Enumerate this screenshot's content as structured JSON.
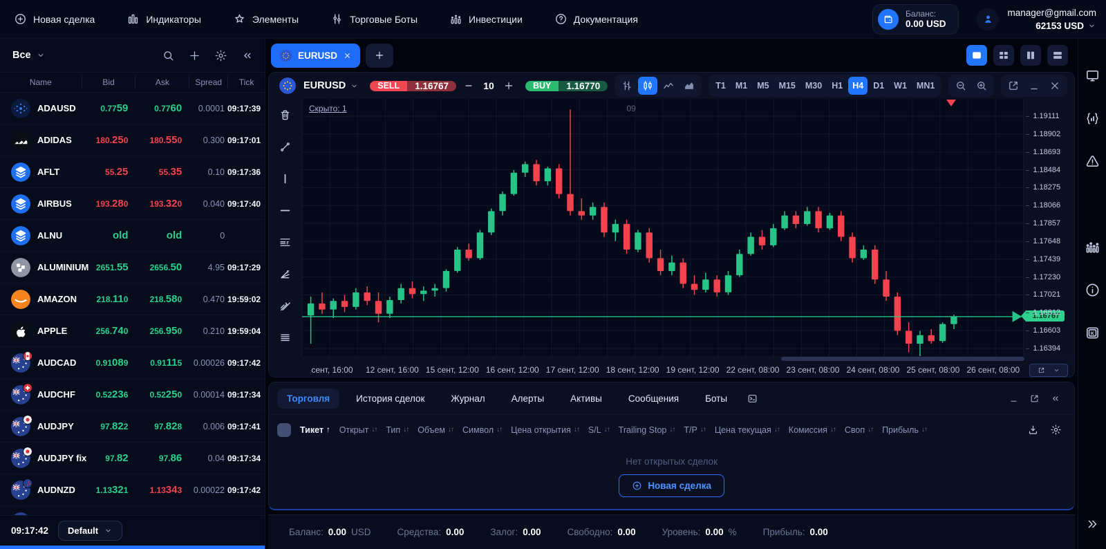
{
  "topnav": {
    "items": [
      {
        "label": "Новая сделка",
        "icon": "plus-circle-icon",
        "slug": "new-deal"
      },
      {
        "label": "Индикаторы",
        "icon": "indicators-icon",
        "slug": "indicators"
      },
      {
        "label": "Элементы",
        "icon": "star-icon",
        "slug": "elements"
      },
      {
        "label": "Торговые Боты",
        "icon": "sliders-icon",
        "slug": "trading-bots"
      },
      {
        "label": "Инвестиции",
        "icon": "investments-icon",
        "slug": "investments"
      },
      {
        "label": "Документация",
        "icon": "question-circle-icon",
        "slug": "documentation"
      }
    ],
    "balance_label": "Баланс:",
    "balance_value": "0.00 USD",
    "email": "manager@gmail.com",
    "account_value": "62153 USD"
  },
  "watchlist": {
    "filter_label": "Все",
    "columns": [
      "Name",
      "Bid",
      "Ask",
      "Spread",
      "Tick"
    ],
    "rows": [
      {
        "name": "ADAUSD",
        "icon": "cardano-icon",
        "bid": {
          "pre": "0.77",
          "big": "59",
          "post": "",
          "dir": "up"
        },
        "ask": {
          "pre": "0.77",
          "big": "60",
          "post": "",
          "dir": "up"
        },
        "spread": "0.0001",
        "tick": "09:17:39"
      },
      {
        "name": "ADIDAS",
        "icon": "adidas-icon",
        "bid": {
          "pre": "180.",
          "big": "25",
          "post": "0",
          "dir": "down"
        },
        "ask": {
          "pre": "180.",
          "big": "55",
          "post": "0",
          "dir": "down"
        },
        "spread": "0.300",
        "tick": "09:17:01"
      },
      {
        "name": "AFLT",
        "icon": "layers-icon",
        "bid": {
          "pre": "55.",
          "big": "25",
          "post": "",
          "dir": "down"
        },
        "ask": {
          "pre": "55.",
          "big": "35",
          "post": "",
          "dir": "down"
        },
        "spread": "0.10",
        "tick": "09:17:36"
      },
      {
        "name": "AIRBUS",
        "icon": "layers-icon",
        "bid": {
          "pre": "193.",
          "big": "28",
          "post": "0",
          "dir": "down"
        },
        "ask": {
          "pre": "193.",
          "big": "32",
          "post": "0",
          "dir": "down"
        },
        "spread": "0.040",
        "tick": "09:17:40"
      },
      {
        "name": "ALNU",
        "icon": "layers-icon",
        "bid": {
          "pre": "",
          "big": "old",
          "post": "",
          "dir": "up"
        },
        "ask": {
          "pre": "",
          "big": "old",
          "post": "",
          "dir": "up"
        },
        "spread": "0",
        "tick": ""
      },
      {
        "name": "ALUMINIUM",
        "icon": "aluminium-icon",
        "bid": {
          "pre": "2651.",
          "big": "55",
          "post": "",
          "dir": "up"
        },
        "ask": {
          "pre": "2656.",
          "big": "50",
          "post": "",
          "dir": "up"
        },
        "spread": "4.95",
        "tick": "09:17:29"
      },
      {
        "name": "AMAZON",
        "icon": "amazon-icon",
        "bid": {
          "pre": "218.",
          "big": "11",
          "post": "0",
          "dir": "up"
        },
        "ask": {
          "pre": "218.",
          "big": "58",
          "post": "0",
          "dir": "up"
        },
        "spread": "0.470",
        "tick": "19:59:02"
      },
      {
        "name": "APPLE",
        "icon": "apple-icon",
        "bid": {
          "pre": "256.",
          "big": "74",
          "post": "0",
          "dir": "up"
        },
        "ask": {
          "pre": "256.",
          "big": "95",
          "post": "0",
          "dir": "up"
        },
        "spread": "0.210",
        "tick": "19:59:04"
      },
      {
        "name": "AUDCAD",
        "icon": "aud-cad-icon",
        "bid": {
          "pre": "0.91",
          "big": "08",
          "post": "9",
          "dir": "up"
        },
        "ask": {
          "pre": "0.91",
          "big": "11",
          "post": "5",
          "dir": "up"
        },
        "spread": "0.00026",
        "tick": "09:17:42"
      },
      {
        "name": "AUDCHF",
        "icon": "aud-chf-icon",
        "bid": {
          "pre": "0.52",
          "big": "23",
          "post": "6",
          "dir": "up"
        },
        "ask": {
          "pre": "0.52",
          "big": "25",
          "post": "0",
          "dir": "up"
        },
        "spread": "0.00014",
        "tick": "09:17:34"
      },
      {
        "name": "AUDJPY",
        "icon": "aud-jpy-icon",
        "bid": {
          "pre": "97.",
          "big": "82",
          "post": "2",
          "dir": "up"
        },
        "ask": {
          "pre": "97.",
          "big": "82",
          "post": "8",
          "dir": "up"
        },
        "spread": "0.006",
        "tick": "09:17:41"
      },
      {
        "name": "AUDJPY fix",
        "icon": "aud-jpy-icon",
        "bid": {
          "pre": "97.",
          "big": "82",
          "post": "",
          "dir": "up"
        },
        "ask": {
          "pre": "97.",
          "big": "86",
          "post": "",
          "dir": "up"
        },
        "spread": "0.04",
        "tick": "09:17:34"
      },
      {
        "name": "AUDNZD",
        "icon": "aud-nzd-icon",
        "bid": {
          "pre": "1.13",
          "big": "32",
          "post": "1",
          "dir": "up"
        },
        "ask": {
          "pre": "1.13",
          "big": "34",
          "post": "3",
          "dir": "down"
        },
        "spread": "0.00022",
        "tick": "09:17:42"
      },
      {
        "name": "",
        "icon": "aud-flag-icon",
        "bid": null,
        "ask": null,
        "spread": "",
        "tick": ""
      }
    ],
    "footer_time": "09:17:42",
    "footer_profile": "Default"
  },
  "chart": {
    "tab_label": "EURUSD",
    "symbol": "EURUSD",
    "sell_label": "SELL",
    "sell_price": "1.16767",
    "volume": "10",
    "buy_label": "BUY",
    "buy_price": "1.16770",
    "timeframes": [
      "T1",
      "M1",
      "M5",
      "M15",
      "M30",
      "H1",
      "H4",
      "D1",
      "W1",
      "MN1"
    ],
    "active_timeframe": "H4",
    "hidden_label": "Скрыто: 1",
    "period_label": "09",
    "price_axis": [
      "1.19111",
      "1.18902",
      "1.18693",
      "1.18484",
      "1.18275",
      "1.18066",
      "1.17857",
      "1.17648",
      "1.17439",
      "1.17230",
      "1.17021",
      "1.16812",
      "1.16603",
      "1.16394"
    ],
    "time_axis": [
      "сент, 16:00",
      "12 сент, 16:00",
      "15 сент, 12:00",
      "16 сент, 12:00",
      "17 сент, 12:00",
      "18 сент, 12:00",
      "19 сент, 12:00",
      "22 сент, 08:00",
      "23 сент, 08:00",
      "24 сент, 08:00",
      "25 сент, 08:00",
      "26 сент, 08:00"
    ],
    "current_price": "1.16767"
  },
  "chart_data": {
    "type": "candlestick",
    "symbol": "EURUSD",
    "timeframe": "H4",
    "current_price": 1.16767,
    "price_min": 1.16305,
    "price_max": 1.19313,
    "up_color": "#26c487",
    "down_color": "#f4434f",
    "candles": [
      [
        1.1678,
        1.17,
        1.1645,
        1.1692
      ],
      [
        1.1692,
        1.1705,
        1.168,
        1.1685
      ],
      [
        1.1685,
        1.1698,
        1.1675,
        1.1695
      ],
      [
        1.1695,
        1.1702,
        1.1682,
        1.1688
      ],
      [
        1.1688,
        1.171,
        1.1685,
        1.1705
      ],
      [
        1.1705,
        1.1712,
        1.169,
        1.1695
      ],
      [
        1.1695,
        1.1705,
        1.167,
        1.168
      ],
      [
        1.168,
        1.17,
        1.1675,
        1.1696
      ],
      [
        1.1696,
        1.1715,
        1.1692,
        1.171
      ],
      [
        1.171,
        1.1718,
        1.1698,
        1.1703
      ],
      [
        1.1703,
        1.1712,
        1.1695,
        1.1707
      ],
      [
        1.1707,
        1.1715,
        1.17,
        1.171
      ],
      [
        1.171,
        1.1732,
        1.1706,
        1.173
      ],
      [
        1.173,
        1.1758,
        1.1728,
        1.1755
      ],
      [
        1.1755,
        1.1762,
        1.1742,
        1.1745
      ],
      [
        1.1745,
        1.1778,
        1.1743,
        1.1775
      ],
      [
        1.1775,
        1.1803,
        1.1772,
        1.18
      ],
      [
        1.18,
        1.1823,
        1.1795,
        1.182
      ],
      [
        1.182,
        1.1848,
        1.1818,
        1.1845
      ],
      [
        1.1845,
        1.1858,
        1.184,
        1.1855
      ],
      [
        1.1855,
        1.186,
        1.183,
        1.1835
      ],
      [
        1.1835,
        1.1852,
        1.183,
        1.185
      ],
      [
        1.185,
        1.1855,
        1.1815,
        1.182
      ],
      [
        1.182,
        1.1919,
        1.1795,
        1.18
      ],
      [
        1.18,
        1.1815,
        1.179,
        1.1795
      ],
      [
        1.1795,
        1.181,
        1.179,
        1.1805
      ],
      [
        1.1805,
        1.181,
        1.177,
        1.1775
      ],
      [
        1.1775,
        1.179,
        1.1765,
        1.1785
      ],
      [
        1.1785,
        1.179,
        1.175,
        1.1755
      ],
      [
        1.1755,
        1.1778,
        1.1752,
        1.1775
      ],
      [
        1.1775,
        1.178,
        1.174,
        1.1745
      ],
      [
        1.1745,
        1.1755,
        1.1725,
        1.173
      ],
      [
        1.173,
        1.1748,
        1.1725,
        1.174
      ],
      [
        1.174,
        1.1745,
        1.171,
        1.1715
      ],
      [
        1.1715,
        1.1725,
        1.1702,
        1.1708
      ],
      [
        1.1708,
        1.1728,
        1.1705,
        1.172
      ],
      [
        1.172,
        1.1725,
        1.17,
        1.1705
      ],
      [
        1.1705,
        1.173,
        1.1702,
        1.1725
      ],
      [
        1.1725,
        1.1755,
        1.1723,
        1.175
      ],
      [
        1.175,
        1.1775,
        1.1748,
        1.177
      ],
      [
        1.177,
        1.1778,
        1.1755,
        1.176
      ],
      [
        1.176,
        1.1785,
        1.1758,
        1.178
      ],
      [
        1.178,
        1.18,
        1.1778,
        1.1795
      ],
      [
        1.1795,
        1.18,
        1.178,
        1.1785
      ],
      [
        1.1785,
        1.1805,
        1.1783,
        1.18
      ],
      [
        1.18,
        1.1805,
        1.1775,
        1.178
      ],
      [
        1.178,
        1.1798,
        1.1778,
        1.1795
      ],
      [
        1.1795,
        1.18,
        1.1765,
        1.177
      ],
      [
        1.177,
        1.1775,
        1.174,
        1.1745
      ],
      [
        1.1745,
        1.176,
        1.1743,
        1.1755
      ],
      [
        1.1755,
        1.176,
        1.1715,
        1.172
      ],
      [
        1.172,
        1.173,
        1.1695,
        1.17
      ],
      [
        1.17,
        1.1705,
        1.1655,
        1.166
      ],
      [
        1.166,
        1.167,
        1.1635,
        1.1645
      ],
      [
        1.1645,
        1.166,
        1.1628,
        1.1655
      ],
      [
        1.1655,
        1.1662,
        1.1645,
        1.1648
      ],
      [
        1.1648,
        1.167,
        1.1646,
        1.1668
      ],
      [
        1.1668,
        1.1679,
        1.1662,
        1.16767
      ]
    ]
  },
  "bottom_panel": {
    "tabs": [
      "Торговля",
      "История сделок",
      "Журнал",
      "Алерты",
      "Активы",
      "Сообщения",
      "Боты"
    ],
    "active_tab": "Торговля",
    "columns": [
      {
        "label": "Тикет",
        "sort": "up"
      },
      {
        "label": "Открыт",
        "sort": "both"
      },
      {
        "label": "Тип",
        "sort": "both"
      },
      {
        "label": "Объем",
        "sort": "both"
      },
      {
        "label": "Символ",
        "sort": "both"
      },
      {
        "label": "Цена открытия",
        "sort": "both"
      },
      {
        "label": "S/L",
        "sort": "both"
      },
      {
        "label": "Trailing Stop",
        "sort": "both"
      },
      {
        "label": "T/P",
        "sort": "both"
      },
      {
        "label": "Цена текущая",
        "sort": "both"
      },
      {
        "label": "Комиссия",
        "sort": "both"
      },
      {
        "label": "Своп",
        "sort": "both"
      },
      {
        "label": "Прибыль",
        "sort": "both"
      }
    ],
    "empty_text": "Нет открытых сделок",
    "new_deal_label": "Новая сделка"
  },
  "status_bar": {
    "items": [
      {
        "label": "Баланс:",
        "value": "0.00",
        "suffix": "USD"
      },
      {
        "label": "Средства:",
        "value": "0.00",
        "suffix": ""
      },
      {
        "label": "Залог:",
        "value": "0.00",
        "suffix": ""
      },
      {
        "label": "Свободно:",
        "value": "0.00",
        "suffix": ""
      },
      {
        "label": "Уровень:",
        "value": "0.00",
        "suffix": "%"
      },
      {
        "label": "Прибыль:",
        "value": "0.00",
        "suffix": ""
      }
    ]
  },
  "right_rail": {
    "icons": [
      "monitor-icon",
      "code-chart-icon",
      "warning-icon",
      "settings-icon",
      "stats-icon",
      "info-icon",
      "keyboard-icon"
    ],
    "bottom_icon": "chevrons-right-icon"
  },
  "draw_tools": [
    "delete-icon",
    "trend-line-icon",
    "vertical-line-icon",
    "horizontal-line-icon",
    "fib-retracement-icon",
    "fib-fan-icon",
    "pitchfork-icon",
    "parallel-lines-icon"
  ],
  "colors": {
    "accent": "#2176ff",
    "up": "#26c487",
    "down": "#f4434f",
    "price_tag": "#2fcf8e"
  }
}
